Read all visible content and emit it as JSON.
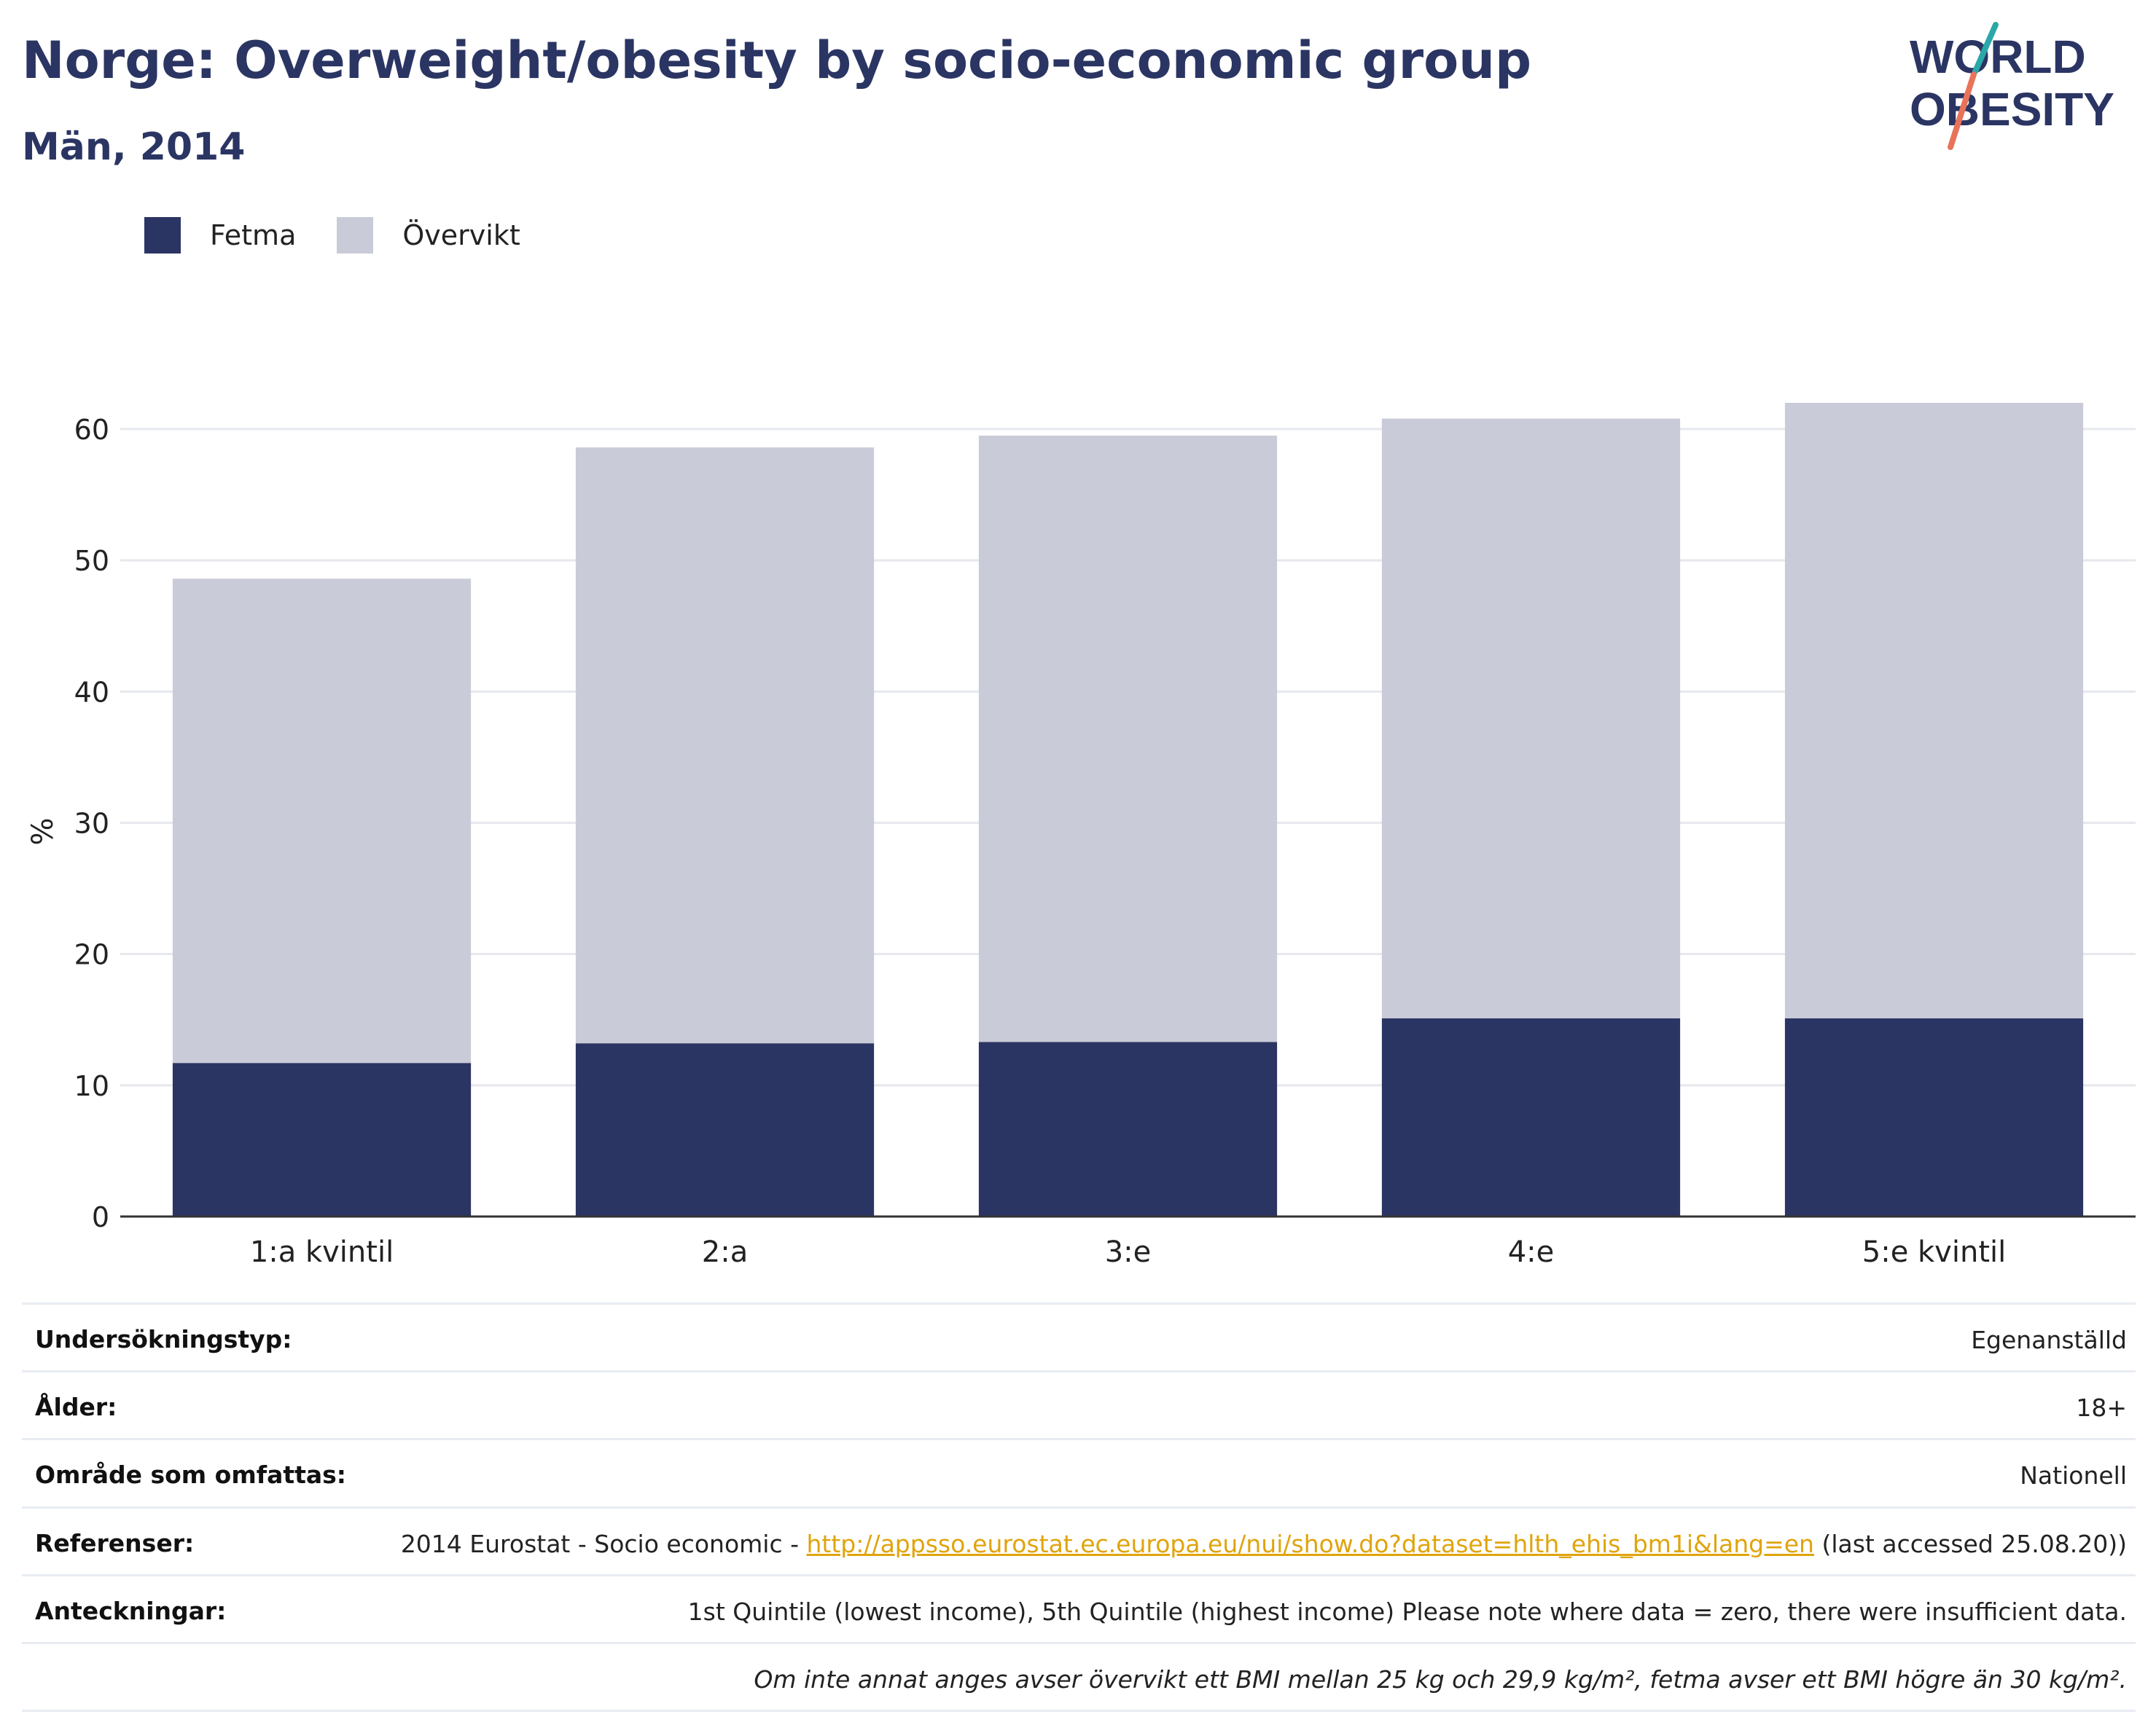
{
  "header": {
    "title": "Norge: Overweight/obesity by socio-economic group",
    "subtitle": "Män, 2014"
  },
  "logo": {
    "line1": "WORLD",
    "line2": "OBESITY",
    "colors": {
      "text": "#2b3563",
      "slash_top": "#2aa8a8",
      "slash_bottom": "#e8735a"
    }
  },
  "legend": [
    {
      "label": "Fetma",
      "color": "#2b3563"
    },
    {
      "label": "Övervikt",
      "color": "#c9cbd8"
    }
  ],
  "chart_data": {
    "type": "bar",
    "stacked": true,
    "categories": [
      "1:a kvintil",
      "2:a",
      "3:e",
      "4:e",
      "5:e kvintil"
    ],
    "series": [
      {
        "name": "Fetma",
        "color": "#2b3563",
        "values": [
          11.7,
          13.2,
          13.3,
          15.1,
          15.1
        ]
      },
      {
        "name": "Övervikt",
        "color": "#c9cbd8",
        "values": [
          36.9,
          45.4,
          46.2,
          45.7,
          46.9
        ]
      }
    ],
    "ylabel": "%",
    "xlabel": "",
    "ylim": [
      0,
      62
    ],
    "yticks": [
      0,
      10,
      20,
      30,
      40,
      50,
      60
    ],
    "grid": true
  },
  "info": {
    "rows": [
      {
        "label": "Undersökningstyp:",
        "value": "Egenanställd"
      },
      {
        "label": "Ålder:",
        "value": "18+"
      },
      {
        "label": "Område som omfattas:",
        "value": "Nationell"
      }
    ],
    "references": {
      "label": "Referenser:",
      "prefix": "2014 Eurostat - Socio economic - ",
      "link": "http://appsso.eurostat.ec.europa.eu/nui/show.do?dataset=hlth_ehis_bm1i&lang=en",
      "suffix": " (last accessed 25.08.20))"
    },
    "notes": {
      "label": "Anteckningar:",
      "value": "1st Quintile (lowest income), 5th Quintile (highest income) Please note where data = zero, there were insufficient data."
    },
    "footnote": "Om inte annat anges avser övervikt ett BMI mellan 25 kg och 29,9 kg/m², fetma avser ett BMI högre än 30 kg/m²."
  }
}
